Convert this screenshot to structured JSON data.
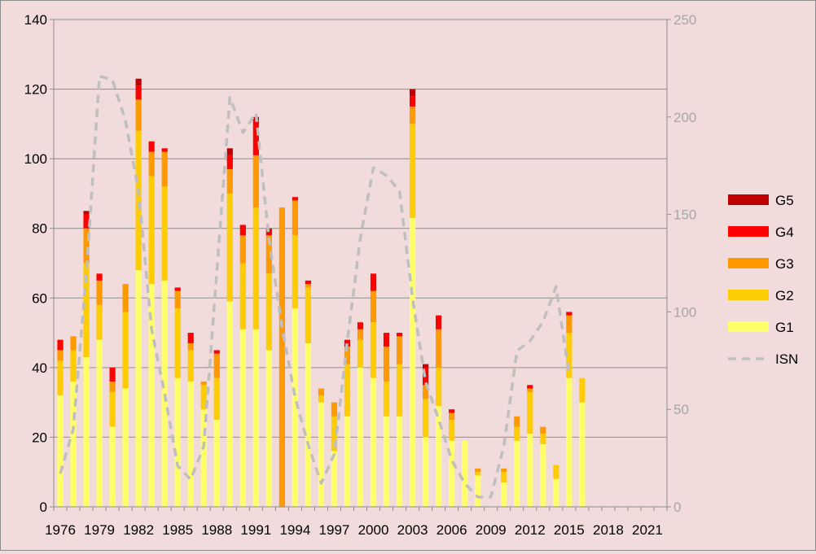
{
  "chart_data": {
    "type": "bar",
    "stacked": true,
    "title": "",
    "xlabel": "",
    "ylabel": "",
    "ylim": [
      0,
      140
    ],
    "y_ticks": [
      0,
      20,
      40,
      60,
      80,
      100,
      120,
      140
    ],
    "y2lim": [
      0,
      250
    ],
    "y2_ticks": [
      0,
      50,
      100,
      150,
      200,
      250
    ],
    "x_tick_labels": [
      "1976",
      "1979",
      "1982",
      "1985",
      "1988",
      "1991",
      "1994",
      "1997",
      "2000",
      "2003",
      "2006",
      "2009",
      "2012",
      "2015",
      "2018",
      "2021"
    ],
    "grid": true,
    "legend_position": "right",
    "categories": [
      "1976",
      "1977",
      "1978",
      "1979",
      "1980",
      "1981",
      "1982",
      "1983",
      "1984",
      "1985",
      "1986",
      "1987",
      "1988",
      "1989",
      "1990",
      "1991",
      "1992",
      "1993",
      "1994",
      "1995",
      "1996",
      "1997",
      "1998",
      "1999",
      "2000",
      "2001",
      "2002",
      "2003",
      "2004",
      "2005",
      "2006",
      "2007",
      "2008",
      "2009",
      "2010",
      "2011",
      "2012",
      "2013",
      "2014",
      "2015",
      "2016",
      "2017",
      "2018",
      "2019",
      "2020",
      "2021",
      "2022"
    ],
    "series": [
      {
        "name": "G1",
        "color": "#ffff66",
        "values": [
          32,
          36,
          43,
          48,
          23,
          34,
          68,
          64,
          65,
          37,
          36,
          28,
          25,
          59,
          51,
          51,
          45,
          0,
          57,
          47,
          30,
          16,
          26,
          40,
          37,
          26,
          26,
          83,
          20,
          29,
          19,
          19,
          9,
          0,
          7,
          19,
          21,
          18,
          8,
          37,
          30,
          0,
          0,
          0,
          0,
          0,
          0
        ]
      },
      {
        "name": "G2",
        "color": "#ffcc00",
        "values": [
          10,
          9,
          27,
          10,
          10,
          22,
          40,
          31,
          27,
          20,
          9,
          7,
          12,
          31,
          19,
          35,
          22,
          0,
          21,
          16,
          2,
          10,
          15,
          8,
          16,
          10,
          15,
          27,
          11,
          11,
          6,
          0,
          1,
          0,
          3,
          4,
          12,
          3,
          4,
          13,
          7,
          0,
          0,
          0,
          0,
          0,
          0
        ]
      },
      {
        "name": "G3",
        "color": "#ff9900",
        "values": [
          3,
          4,
          10,
          7,
          3,
          8,
          9,
          7,
          10,
          5,
          2,
          1,
          7,
          7,
          8,
          15,
          11,
          86,
          10,
          1,
          2,
          4,
          5,
          3,
          9,
          10,
          8,
          5,
          4,
          11,
          2,
          0,
          1,
          0,
          1,
          3,
          1,
          2,
          0,
          5,
          0,
          0,
          0,
          0,
          0,
          0,
          0
        ]
      },
      {
        "name": "G4",
        "color": "#ff0000",
        "values": [
          3,
          0,
          4,
          2,
          4,
          0,
          4,
          3,
          1,
          1,
          3,
          0,
          1,
          4,
          3,
          10,
          2,
          0,
          1,
          1,
          0,
          0,
          2,
          2,
          5,
          4,
          1,
          3,
          5,
          4,
          1,
          0,
          0,
          0,
          0,
          0,
          1,
          0,
          0,
          1,
          0,
          0,
          0,
          0,
          0,
          0,
          0
        ]
      },
      {
        "name": "G5",
        "color": "#c00000",
        "values": [
          0,
          0,
          1,
          0,
          0,
          0,
          2,
          0,
          0,
          0,
          0,
          0,
          0,
          2,
          0,
          1,
          0,
          0,
          0,
          0,
          0,
          0,
          0,
          0,
          0,
          0,
          0,
          2,
          1,
          0,
          0,
          0,
          0,
          0,
          0,
          0,
          0,
          0,
          0,
          0,
          0,
          0,
          0,
          0,
          0,
          0,
          0
        ]
      }
    ],
    "line_series": {
      "name": "ISN",
      "axis": "secondary",
      "color": "#bfbfbf",
      "dashed": true,
      "values": [
        17,
        40,
        120,
        221,
        219,
        198,
        162,
        91,
        58,
        21,
        14,
        31,
        121,
        210,
        192,
        202,
        137,
        92,
        56,
        32,
        12,
        27,
        85,
        138,
        174,
        170,
        162,
        107,
        64,
        45,
        24,
        12,
        5,
        5,
        31,
        80,
        85,
        95,
        113,
        68,
        null,
        null,
        null,
        null,
        null,
        null,
        null
      ]
    }
  }
}
